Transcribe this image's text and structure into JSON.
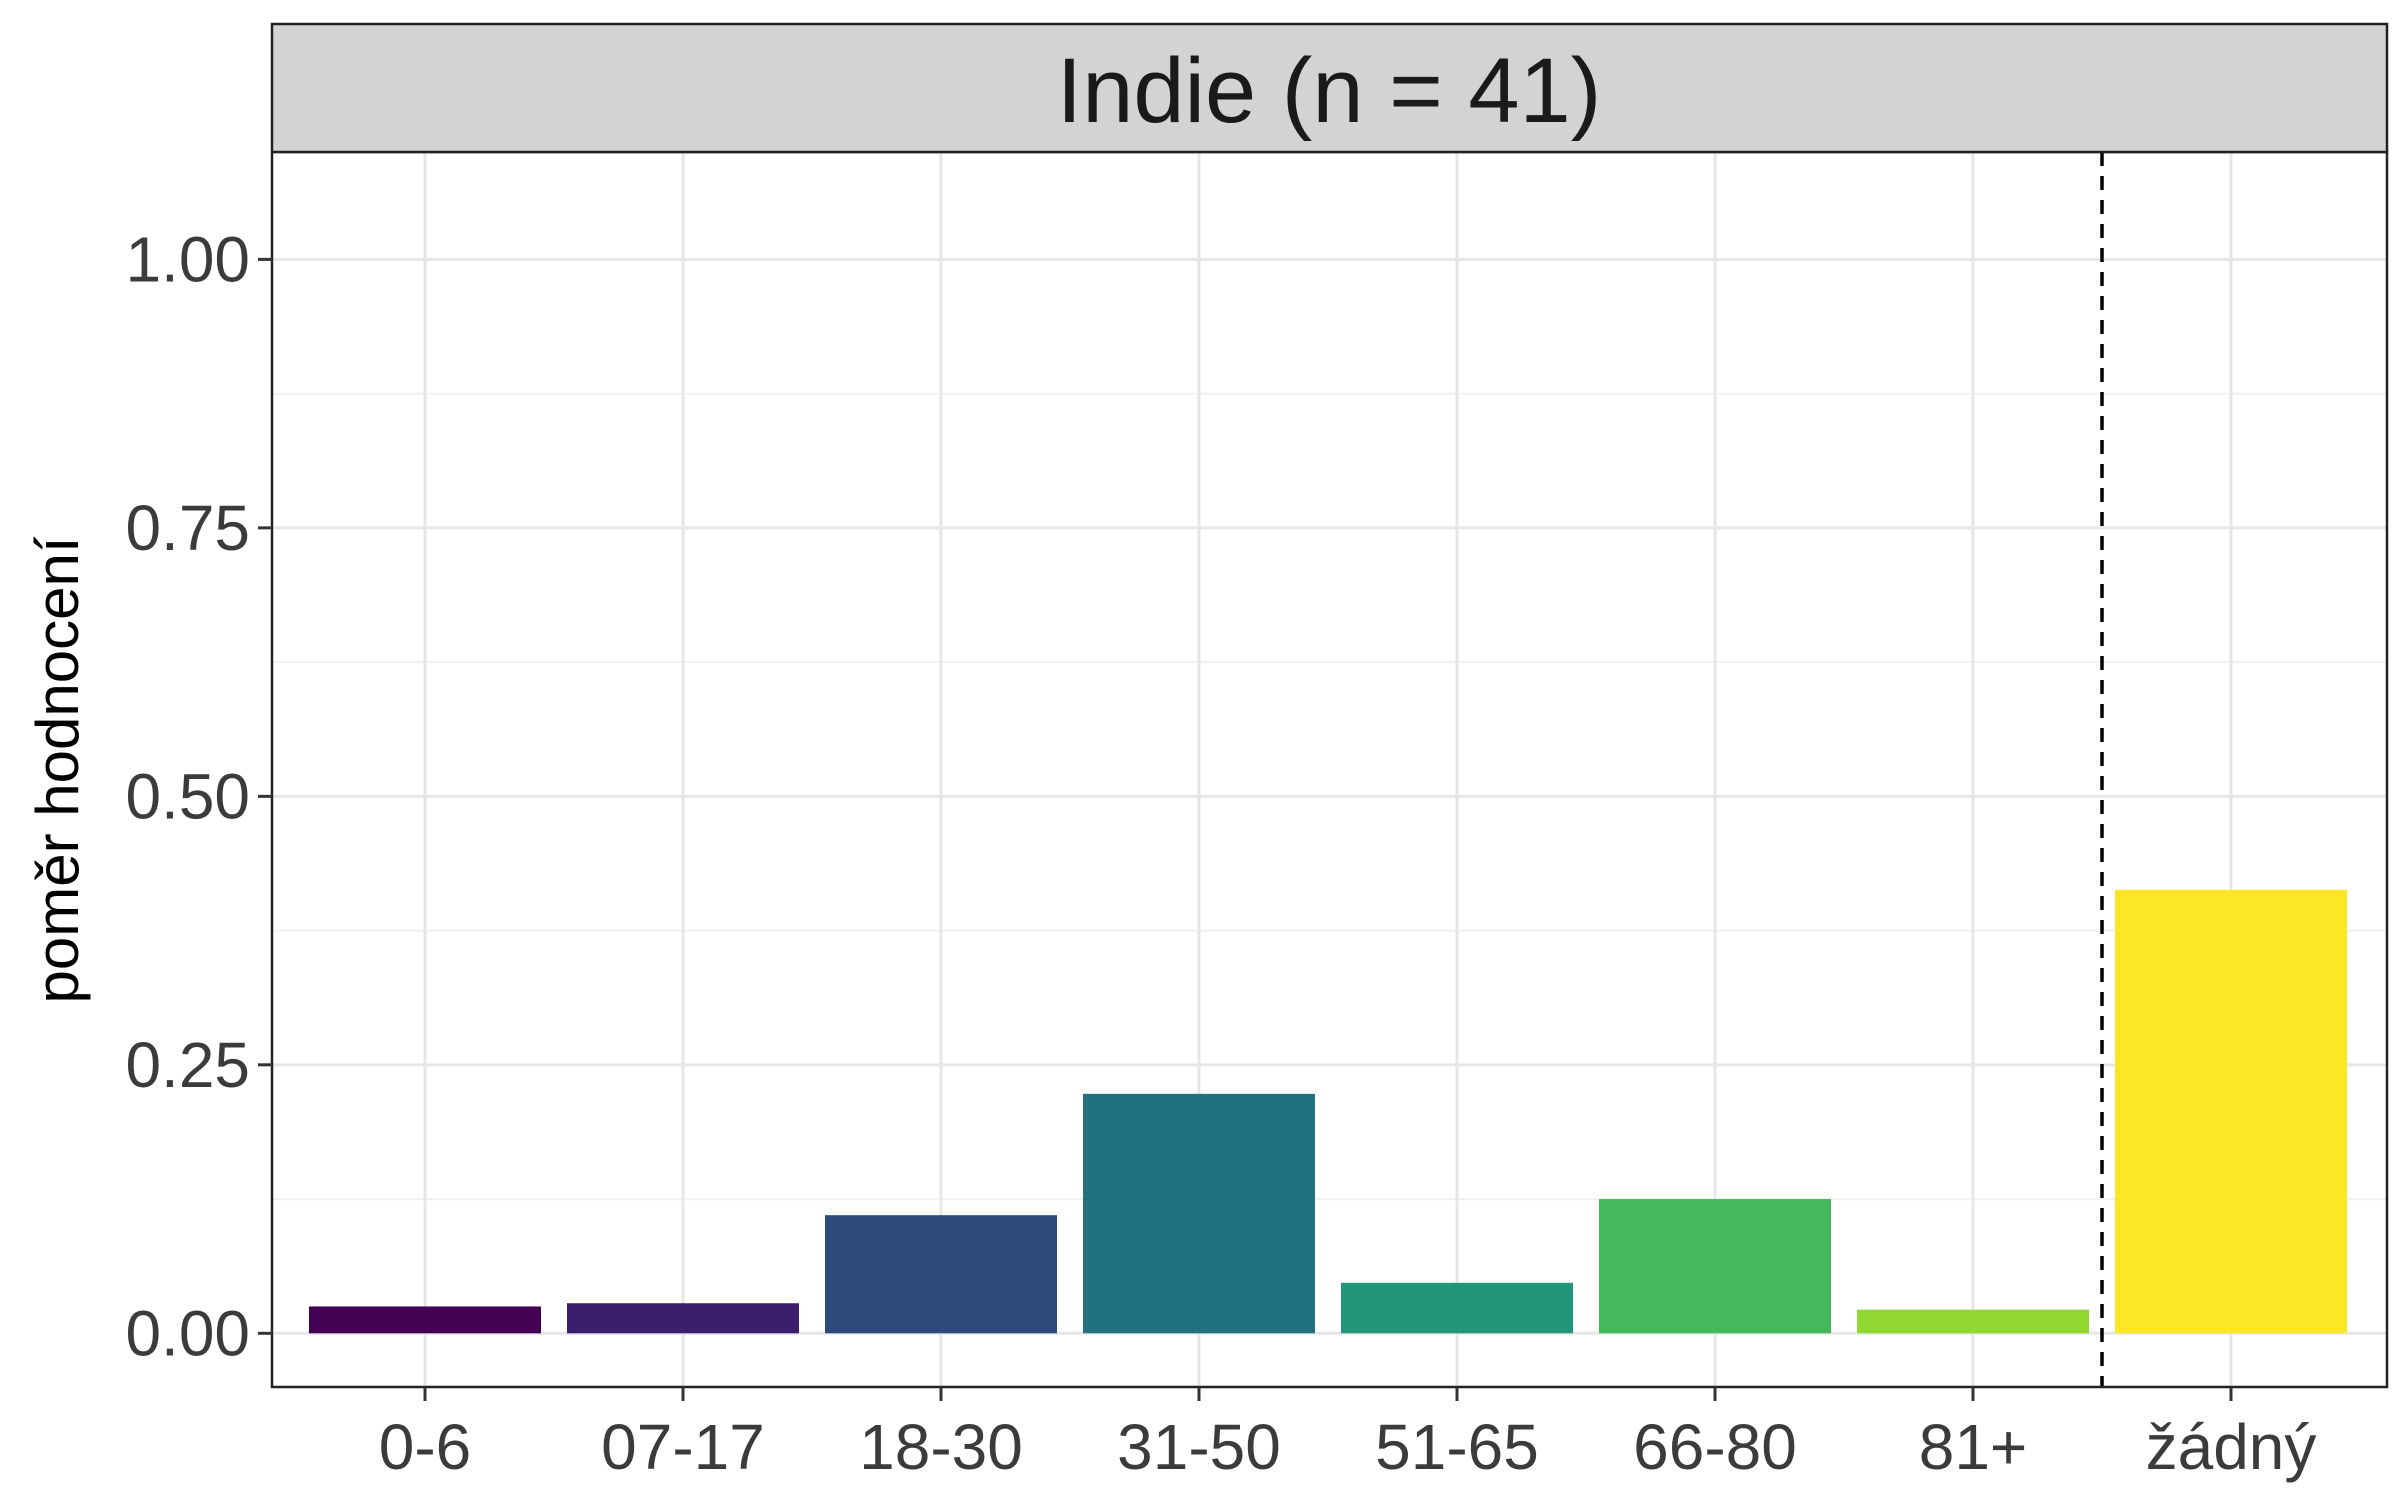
{
  "chart_data": {
    "type": "bar",
    "title": "Indie (n = 41)",
    "xlabel": "",
    "ylabel": "poměr hodnocení",
    "ylim": [
      -0.05,
      1.1
    ],
    "yticks": [
      0.0,
      0.25,
      0.5,
      0.75,
      1.0
    ],
    "ytick_labels": [
      "0.00",
      "0.25",
      "0.50",
      "0.75",
      "1.00"
    ],
    "grid": true,
    "legend": "none",
    "categories": [
      "0-6",
      "07-17",
      "18-30",
      "31-50",
      "51-65",
      "66-80",
      "81+",
      "žádný"
    ],
    "values": [
      0.025,
      0.028,
      0.11,
      0.223,
      0.047,
      0.125,
      0.022,
      0.413
    ],
    "colors": [
      "#440154",
      "#3B1F6E",
      "#2C4A7C",
      "#21717E",
      "#22957A",
      "#43B95B",
      "#90D830",
      "#FDE725"
    ],
    "reference_line": {
      "after_category": "81+",
      "style": "dashed",
      "color": "#000000"
    }
  }
}
